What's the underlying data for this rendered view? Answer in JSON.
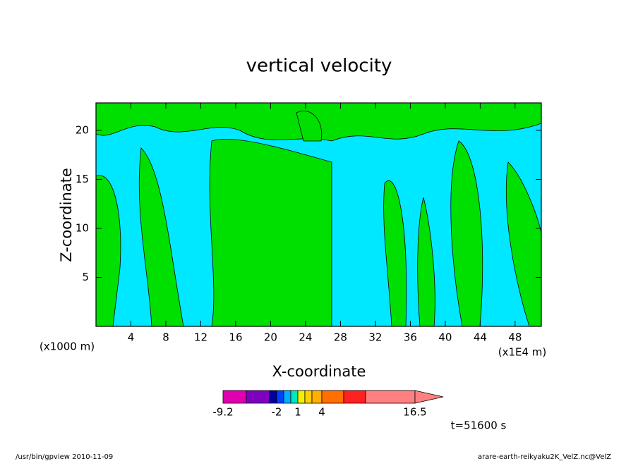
{
  "chart_data": {
    "type": "contour",
    "title": "vertical velocity",
    "x_label": "X-coordinate",
    "y_label": "Z-coordinate",
    "x_unit": "(x1000 m)",
    "x_scale_note": "(x1E4 m)",
    "xlim": [
      0,
      51
    ],
    "ylim": [
      0,
      22.8
    ],
    "xticks": [
      4,
      8,
      12,
      16,
      20,
      24,
      28,
      32,
      36,
      40,
      44,
      48
    ],
    "yticks": [
      5,
      10,
      15,
      20
    ],
    "field_colors": [
      "#00e8ff",
      "#00e000"
    ],
    "colorbar": {
      "colors": [
        "#e000b0",
        "#8000c0",
        "#0000a0",
        "#0040ff",
        "#00b0ff",
        "#00e8c0",
        "#f0f000",
        "#ffd000",
        "#ffb000",
        "#ff7000",
        "#ff2020",
        "#ff8080"
      ],
      "ticks": [
        -9.2,
        -2,
        1,
        4,
        16.5
      ]
    },
    "annotation": "t=51600 s"
  },
  "footer": {
    "left": "/usr/bin/gpview  2010-11-09",
    "right": "arare-earth-reikyaku2K_VelZ.nc@VelZ"
  }
}
